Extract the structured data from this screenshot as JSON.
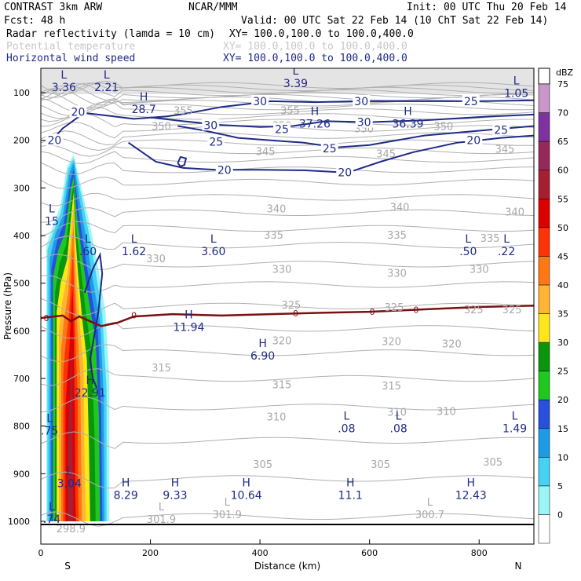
{
  "header": {
    "line1_left": "CONTRAST  3km ARW",
    "line1_mid": "NCAR/MMM",
    "line1_right": "Init: 00 UTC Thu 20 Feb 14",
    "line2_left": "Fcst:    48 h",
    "line2_right": "Valid: 00 UTC Sat 22 Feb 14 (10 ChT Sat 22 Feb 14)",
    "fields": [
      {
        "name": "Radar reflectivity (lamda = 10 cm)",
        "xy": "XY= 100.0,100.0 to 100.0,400.0",
        "color": "#000000"
      },
      {
        "name": "Potential temperature",
        "xy": "XY= 100.0,100.0 to 100.0,400.0",
        "color": "#c8c8c8"
      },
      {
        "name": "Horizontal wind speed",
        "xy": "XY= 100.0,100.0 to 100.0,400.0",
        "color": "#1f2a87"
      }
    ]
  },
  "chart_data": {
    "type": "cross-section",
    "xlabel": "Distance (km)",
    "ylabel": "Pressure (hPa)",
    "xlim": [
      0,
      900
    ],
    "ylim": [
      1020,
      50
    ],
    "x_ticks": [
      0,
      200,
      400,
      600,
      800
    ],
    "y_ticks": [
      100,
      200,
      300,
      400,
      500,
      600,
      700,
      800,
      900,
      1000
    ],
    "x_end_labels": {
      "left": "S",
      "right": "N"
    },
    "colorbar": {
      "unit": "dBZ",
      "levels": [
        0,
        5,
        10,
        15,
        20,
        25,
        30,
        35,
        40,
        45,
        50,
        55,
        60,
        65,
        70,
        75
      ],
      "colors": [
        "#ffffff",
        "#9cf5f5",
        "#46d2f5",
        "#1e9be6",
        "#2850dc",
        "#1ec81e",
        "#0a960a",
        "#ffe619",
        "#ffb432",
        "#ff7814",
        "#ff3205",
        "#dc0000",
        "#a51e32",
        "#96285a",
        "#7d32a0",
        "#c896c8"
      ]
    },
    "theta_contours": {
      "color": "#a8a8a8",
      "labels": [
        {
          "text": "355",
          "x": 260,
          "p": 137
        },
        {
          "text": "355",
          "x": 455,
          "p": 137
        },
        {
          "text": "350",
          "x": 220,
          "p": 170
        },
        {
          "text": "350",
          "x": 440,
          "p": 168
        },
        {
          "text": "350",
          "x": 590,
          "p": 175
        },
        {
          "text": "350",
          "x": 735,
          "p": 170
        },
        {
          "text": "345",
          "x": 410,
          "p": 223
        },
        {
          "text": "345",
          "x": 630,
          "p": 228
        },
        {
          "text": "345",
          "x": 847,
          "p": 218
        },
        {
          "text": "340",
          "x": 430,
          "p": 343
        },
        {
          "text": "340",
          "x": 655,
          "p": 340
        },
        {
          "text": "340",
          "x": 865,
          "p": 350
        },
        {
          "text": "335",
          "x": 425,
          "p": 398
        },
        {
          "text": "335",
          "x": 650,
          "p": 398
        },
        {
          "text": "335",
          "x": 820,
          "p": 405
        },
        {
          "text": "330",
          "x": 210,
          "p": 448
        },
        {
          "text": "330",
          "x": 440,
          "p": 470
        },
        {
          "text": "330",
          "x": 650,
          "p": 478
        },
        {
          "text": "330",
          "x": 800,
          "p": 470
        },
        {
          "text": "325",
          "x": 457,
          "p": 545
        },
        {
          "text": "325",
          "x": 645,
          "p": 550
        },
        {
          "text": "325",
          "x": 790,
          "p": 555
        },
        {
          "text": "325",
          "x": 860,
          "p": 555
        },
        {
          "text": "320",
          "x": 440,
          "p": 620
        },
        {
          "text": "320",
          "x": 640,
          "p": 622
        },
        {
          "text": "320",
          "x": 750,
          "p": 627
        },
        {
          "text": "315",
          "x": 220,
          "p": 677
        },
        {
          "text": "315",
          "x": 440,
          "p": 712
        },
        {
          "text": "315",
          "x": 640,
          "p": 715
        },
        {
          "text": "310",
          "x": 430,
          "p": 780
        },
        {
          "text": "310",
          "x": 740,
          "p": 768
        },
        {
          "text": "310",
          "x": 650,
          "p": 770
        },
        {
          "text": "305",
          "x": 405,
          "p": 880
        },
        {
          "text": "305",
          "x": 620,
          "p": 880
        },
        {
          "text": "305",
          "x": 825,
          "p": 875
        }
      ]
    },
    "wind_contours": {
      "color": "#1f2a87",
      "labels": [
        {
          "text": "20",
          "x": 68,
          "p": 140
        },
        {
          "text": "20",
          "x": 25,
          "p": 200
        },
        {
          "text": "30",
          "x": 400,
          "p": 118
        },
        {
          "text": "30",
          "x": 585,
          "p": 118
        },
        {
          "text": "25",
          "x": 785,
          "p": 118
        },
        {
          "text": "30",
          "x": 310,
          "p": 168
        },
        {
          "text": "30",
          "x": 590,
          "p": 162
        },
        {
          "text": "25",
          "x": 440,
          "p": 177
        },
        {
          "text": "25",
          "x": 840,
          "p": 178
        },
        {
          "text": "20",
          "x": 790,
          "p": 200
        },
        {
          "text": "25",
          "x": 320,
          "p": 203
        },
        {
          "text": "25",
          "x": 527,
          "p": 217
        },
        {
          "text": "20",
          "x": 335,
          "p": 262
        },
        {
          "text": "20",
          "x": 555,
          "p": 267
        }
      ],
      "extrema": [
        {
          "type": "L",
          "value": "3.36",
          "x": 42,
          "p": 74
        },
        {
          "type": "L",
          "value": "2.21",
          "x": 120,
          "p": 74
        },
        {
          "type": "L",
          "value": "3.39",
          "x": 465,
          "p": 65
        },
        {
          "type": "L",
          "value": "1.05",
          "x": 868,
          "p": 86
        },
        {
          "type": "H",
          "value": "28.7",
          "x": 188,
          "p": 120
        },
        {
          "type": "H",
          "value": "37.26",
          "x": 500,
          "p": 150
        },
        {
          "type": "H",
          "value": "36.39",
          "x": 670,
          "p": 150
        },
        {
          "type": "L",
          "value": "15",
          "x": 20,
          "p": 355
        },
        {
          "type": "L",
          "value": ".60",
          "x": 86,
          "p": 418
        },
        {
          "type": "L",
          "value": "1.62",
          "x": 170,
          "p": 418
        },
        {
          "type": "L",
          "value": "3.60",
          "x": 315,
          "p": 418
        },
        {
          "type": "L",
          "value": ".50",
          "x": 780,
          "p": 418
        },
        {
          "type": "L",
          "value": ".22",
          "x": 850,
          "p": 418
        },
        {
          "type": "H",
          "value": "11.94",
          "x": 270,
          "p": 577
        },
        {
          "type": "H",
          "value": "6.90",
          "x": 405,
          "p": 637
        },
        {
          "type": "H",
          "value": "22.91",
          "x": 90,
          "p": 715
        },
        {
          "type": "L",
          "value": ".75",
          "x": 16,
          "p": 795
        },
        {
          "type": "L",
          "value": ".08",
          "x": 558,
          "p": 790
        },
        {
          "type": "L",
          "value": ".08",
          "x": 653,
          "p": 790
        },
        {
          "type": "L",
          "value": "1.49",
          "x": 865,
          "p": 790
        },
        {
          "type": "L",
          "value": "3.04",
          "x": 52,
          "p": 905
        },
        {
          "type": "H",
          "value": "8.29",
          "x": 155,
          "p": 930
        },
        {
          "type": "H",
          "value": "9.33",
          "x": 245,
          "p": 930
        },
        {
          "type": "H",
          "value": "10.64",
          "x": 375,
          "p": 930
        },
        {
          "type": "H",
          "value": "11.1",
          "x": 565,
          "p": 930
        },
        {
          "type": "H",
          "value": "12.43",
          "x": 785,
          "p": 930
        },
        {
          "type": "L",
          "value": ".74",
          "x": 20,
          "p": 980
        }
      ]
    },
    "theta_extrema": [
      {
        "type": "L",
        "value": "301.9",
        "x": 220,
        "p": 1000
      },
      {
        "type": "L",
        "value": "301.9",
        "x": 340,
        "p": 990
      },
      {
        "type": "L",
        "value": "300.7",
        "x": 710,
        "p": 990
      },
      {
        "type": "",
        "value": "298.9",
        "x": 55,
        "p": 1020
      }
    ],
    "freezing_line": {
      "label": "0",
      "color": "#7a1010",
      "points": [
        [
          0,
          573
        ],
        [
          40,
          568
        ],
        [
          55,
          580
        ],
        [
          70,
          570
        ],
        [
          90,
          580
        ],
        [
          110,
          590
        ],
        [
          140,
          583
        ],
        [
          170,
          570
        ],
        [
          240,
          565
        ],
        [
          330,
          568
        ],
        [
          420,
          565
        ],
        [
          520,
          562
        ],
        [
          600,
          560
        ],
        [
          700,
          555
        ],
        [
          800,
          550
        ],
        [
          900,
          547
        ]
      ]
    }
  }
}
